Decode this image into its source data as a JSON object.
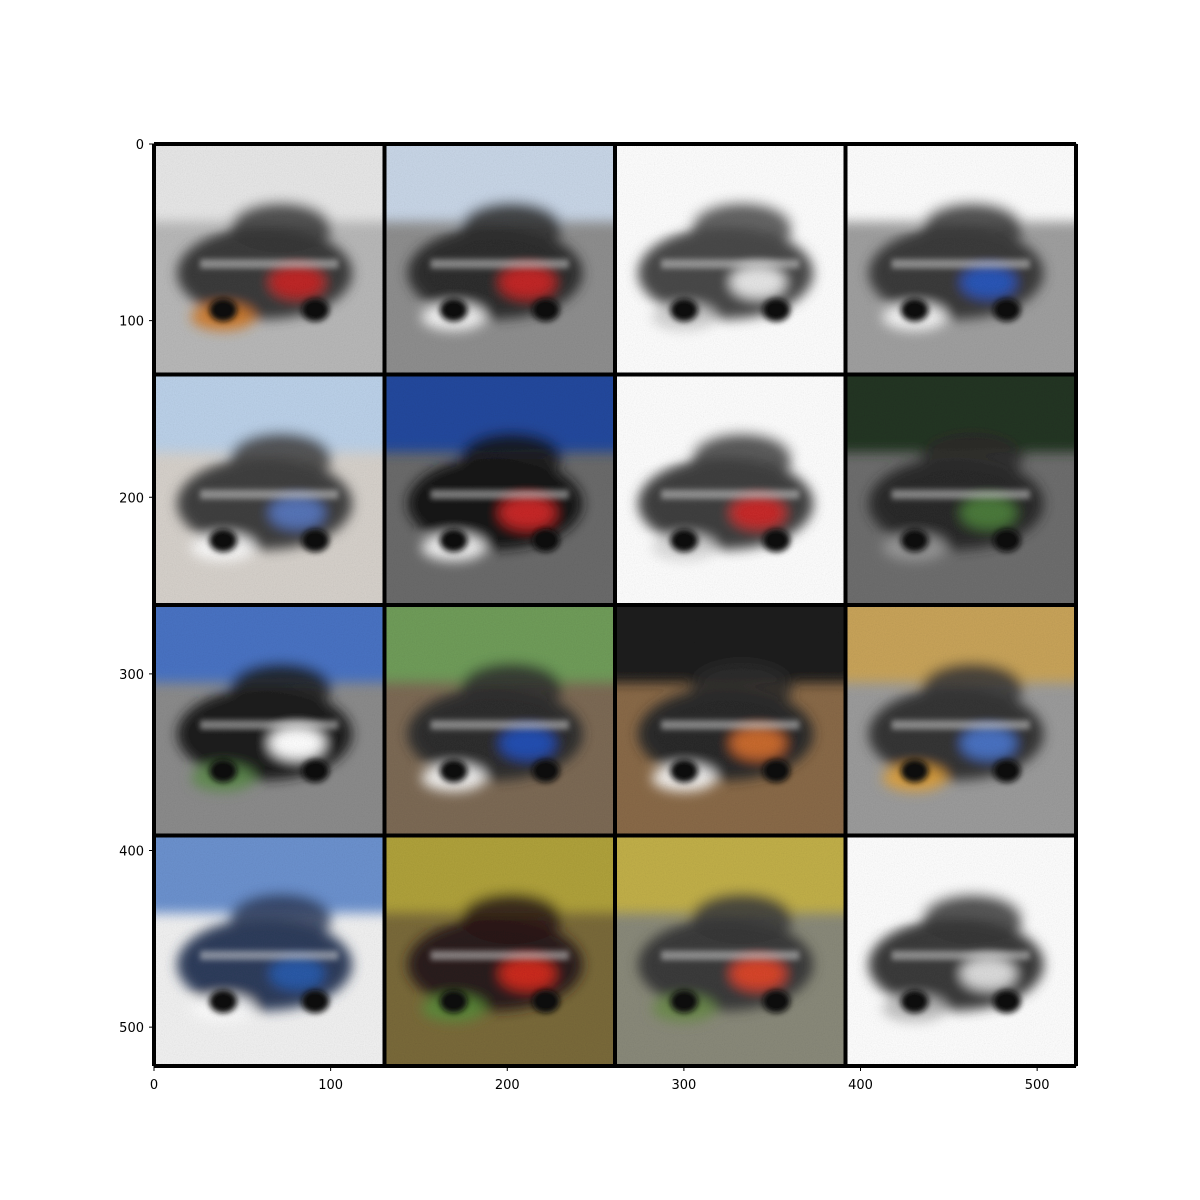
{
  "axes": {
    "x_ticks": [
      0,
      100,
      200,
      300,
      400,
      500
    ],
    "y_ticks": [
      0,
      100,
      200,
      300,
      400,
      500
    ],
    "x_range": [
      0,
      522
    ],
    "y_range": [
      0,
      522
    ]
  },
  "grid": {
    "rows": 4,
    "cols": 4,
    "border_color": "#000000",
    "tiles": [
      {
        "subject": "car",
        "bg": "#b9b9b9",
        "top": "#e8e8e8",
        "body": "#3a3a3a",
        "accent": "#c02828",
        "accent2": "#d07a2a"
      },
      {
        "subject": "car",
        "bg": "#8f8f8f",
        "top": "#c9d7e8",
        "body": "#2e2e2e",
        "accent": "#c32626",
        "accent2": "#ffffff"
      },
      {
        "subject": "car",
        "bg": "#ffffff",
        "top": "#ffffff",
        "body": "#4a4a4a",
        "accent": "#e6e6e6",
        "accent2": "#cfcfcf"
      },
      {
        "subject": "car",
        "bg": "#a0a0a0",
        "top": "#ffffff",
        "body": "#3b3b3b",
        "accent": "#2c56b8",
        "accent2": "#ffffff"
      },
      {
        "subject": "car",
        "bg": "#d7d2cc",
        "top": "#bcd2ea",
        "body": "#404040",
        "accent": "#5774b8",
        "accent2": "#ffffff"
      },
      {
        "subject": "car",
        "bg": "#6b6b6b",
        "top": "#244a9e",
        "body": "#151515",
        "accent": "#c82626",
        "accent2": "#ffffff"
      },
      {
        "subject": "car",
        "bg": "#ffffff",
        "top": "#ffffff",
        "body": "#3f3f3f",
        "accent": "#c92a2a",
        "accent2": "#d9d9d9"
      },
      {
        "subject": "car",
        "bg": "#6e6e6e",
        "top": "#243520",
        "body": "#2a2a2a",
        "accent": "#4c7a3a",
        "accent2": "#9b9b9b"
      },
      {
        "subject": "car",
        "bg": "#8c8c8c",
        "top": "#4a73c4",
        "body": "#1d1d1d",
        "accent": "#ffffff",
        "accent2": "#5e8c4e"
      },
      {
        "subject": "car",
        "bg": "#7d6a55",
        "top": "#6f9d5a",
        "body": "#2f2f2f",
        "accent": "#2350b2",
        "accent2": "#ffffff"
      },
      {
        "subject": "car",
        "bg": "#8a6a48",
        "top": "#1f1f1f",
        "body": "#2b2b2b",
        "accent": "#c96b2e",
        "accent2": "#ffffff"
      },
      {
        "subject": "car",
        "bg": "#9c9c9c",
        "top": "#c9a45a",
        "body": "#353535",
        "accent": "#4a72c2",
        "accent2": "#e0a13a"
      },
      {
        "subject": "car",
        "bg": "#f2f2f2",
        "top": "#6c92cf",
        "body": "#2f3d5c",
        "accent": "#2c5aa8",
        "accent2": "#ffffff"
      },
      {
        "subject": "car",
        "bg": "#7a6a3a",
        "top": "#b0a23a",
        "body": "#2a1a1a",
        "accent": "#cc2a1e",
        "accent2": "#5b8c3a"
      },
      {
        "subject": "car",
        "bg": "#8a8a7a",
        "top": "#c2b04a",
        "body": "#3a3a3a",
        "accent": "#d8442a",
        "accent2": "#6b8c4a"
      },
      {
        "subject": "car",
        "bg": "#ffffff",
        "top": "#ffffff",
        "body": "#3a3a3a",
        "accent": "#dcdcdc",
        "accent2": "#bdbdbd"
      }
    ]
  }
}
